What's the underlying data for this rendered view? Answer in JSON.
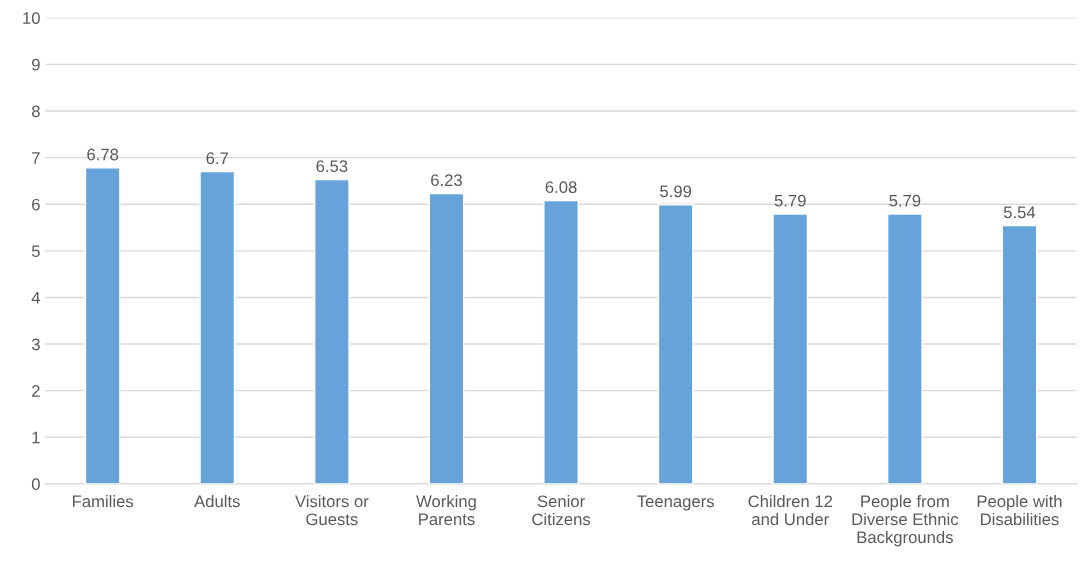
{
  "chart_data": {
    "type": "bar",
    "categories": [
      "Families",
      "Adults",
      "Visitors or\nGuests",
      "Working\nParents",
      "Senior\nCitizens",
      "Teenagers",
      "Children 12\nand Under",
      "People from\nDiverse Ethnic\nBackgrounds",
      "People with\nDisabilities"
    ],
    "values": [
      6.78,
      6.7,
      6.53,
      6.23,
      6.08,
      5.99,
      5.79,
      5.79,
      5.54
    ],
    "color": "#65a3da",
    "ylim": [
      0,
      10
    ],
    "yticks": [
      0,
      1,
      2,
      3,
      4,
      5,
      6,
      7,
      8,
      9,
      10
    ],
    "grid": "y",
    "data_labels": true,
    "legend": false
  }
}
